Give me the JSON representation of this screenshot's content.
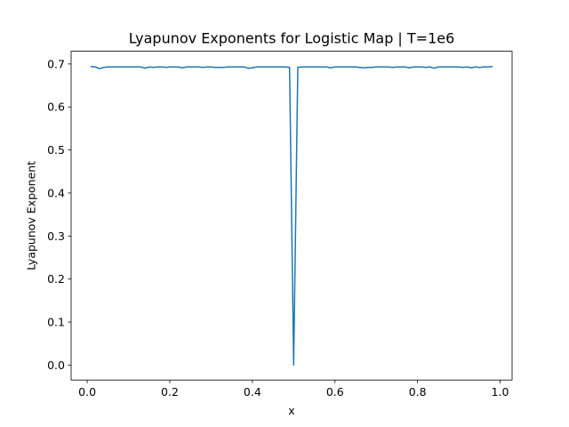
{
  "chart_data": {
    "type": "line",
    "title": "Lyapunov Exponents for Logistic Map | T=1e6",
    "xlabel": "x",
    "ylabel": "Lyapunov Exponent",
    "xlim": [
      -0.039,
      1.029
    ],
    "ylim": [
      -0.0347,
      0.7295
    ],
    "grid": false,
    "x_ticks": [
      0.0,
      0.2,
      0.4,
      0.6,
      0.8,
      1.0
    ],
    "x_tick_labels": [
      "0.0",
      "0.2",
      "0.4",
      "0.6",
      "0.8",
      "1.0"
    ],
    "y_ticks": [
      0.0,
      0.1,
      0.2,
      0.3,
      0.4,
      0.5,
      0.6,
      0.7
    ],
    "y_tick_labels": [
      "0.0",
      "0.1",
      "0.2",
      "0.3",
      "0.4",
      "0.5",
      "0.6",
      "0.7"
    ],
    "series": [
      {
        "color": "#1f77b4",
        "x": [
          0.01,
          0.02,
          0.03,
          0.04,
          0.05,
          0.06,
          0.07,
          0.08,
          0.09,
          0.1,
          0.11,
          0.12,
          0.13,
          0.14,
          0.15,
          0.16,
          0.17,
          0.18,
          0.19,
          0.2,
          0.21,
          0.22,
          0.23,
          0.24,
          0.25,
          0.26,
          0.27,
          0.28,
          0.29,
          0.3,
          0.31,
          0.32,
          0.33,
          0.34,
          0.35,
          0.36,
          0.37,
          0.38,
          0.39,
          0.4,
          0.41,
          0.42,
          0.43,
          0.44,
          0.45,
          0.46,
          0.47,
          0.48,
          0.49,
          0.5,
          0.51,
          0.52,
          0.53,
          0.54,
          0.55,
          0.56,
          0.57,
          0.58,
          0.59,
          0.6,
          0.61,
          0.62,
          0.63,
          0.64,
          0.65,
          0.66,
          0.67,
          0.68,
          0.69,
          0.7,
          0.71,
          0.72,
          0.73,
          0.74,
          0.75,
          0.76,
          0.77,
          0.78,
          0.79,
          0.8,
          0.81,
          0.82,
          0.83,
          0.84,
          0.85,
          0.86,
          0.87,
          0.88,
          0.89,
          0.9,
          0.91,
          0.92,
          0.93,
          0.94,
          0.95,
          0.96,
          0.97,
          0.98
        ],
        "values": [
          0.694,
          0.693,
          0.689,
          0.692,
          0.693,
          0.693,
          0.693,
          0.693,
          0.693,
          0.693,
          0.693,
          0.693,
          0.693,
          0.69,
          0.693,
          0.692,
          0.693,
          0.693,
          0.692,
          0.693,
          0.693,
          0.693,
          0.691,
          0.693,
          0.693,
          0.693,
          0.693,
          0.692,
          0.693,
          0.693,
          0.692,
          0.692,
          0.692,
          0.693,
          0.693,
          0.693,
          0.693,
          0.693,
          0.69,
          0.691,
          0.693,
          0.693,
          0.693,
          0.693,
          0.693,
          0.693,
          0.693,
          0.693,
          0.692,
          0.0,
          0.692,
          0.693,
          0.693,
          0.693,
          0.693,
          0.693,
          0.693,
          0.693,
          0.691,
          0.693,
          0.693,
          0.693,
          0.693,
          0.693,
          0.693,
          0.692,
          0.691,
          0.692,
          0.692,
          0.693,
          0.693,
          0.693,
          0.693,
          0.692,
          0.693,
          0.693,
          0.693,
          0.691,
          0.693,
          0.693,
          0.693,
          0.692,
          0.693,
          0.69,
          0.693,
          0.693,
          0.693,
          0.693,
          0.693,
          0.693,
          0.692,
          0.693,
          0.691,
          0.693,
          0.692,
          0.693,
          0.693,
          0.694
        ]
      }
    ]
  }
}
